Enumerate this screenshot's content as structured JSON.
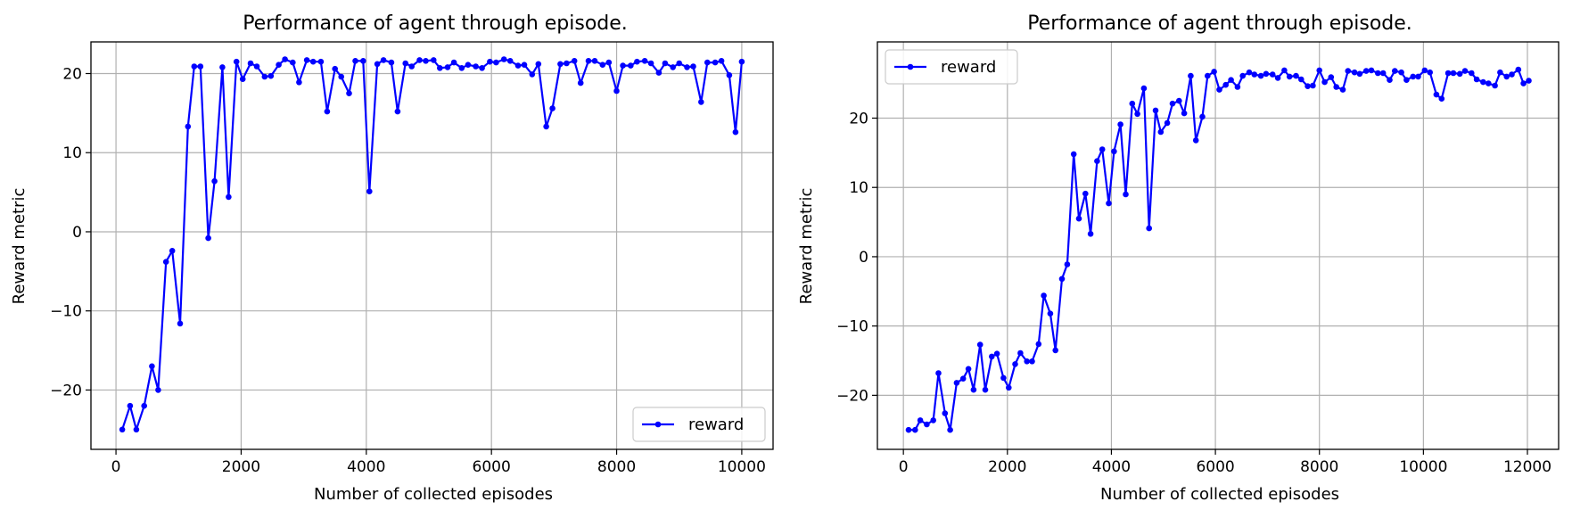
{
  "chart_data": [
    {
      "type": "line",
      "title": "Performance of agent through episode.",
      "xlabel": "Number of collected episodes",
      "ylabel": "Reward metric",
      "xlim": [
        -400,
        10500
      ],
      "ylim": [
        -27.5,
        24.0
      ],
      "xticks": [
        0,
        2000,
        4000,
        6000,
        8000,
        10000
      ],
      "yticks": [
        -20,
        -10,
        0,
        10,
        20
      ],
      "grid": true,
      "legend_position": "lower-right",
      "line_color": "#0000ff",
      "series": [
        {
          "name": "reward",
          "x": [
            100,
            225,
            325,
            450,
            575,
            675,
            800,
            900,
            1025,
            1150,
            1250,
            1350,
            1475,
            1575,
            1700,
            1800,
            1925,
            2025,
            2150,
            2250,
            2375,
            2475,
            2600,
            2700,
            2825,
            2925,
            3050,
            3150,
            3275,
            3375,
            3500,
            3600,
            3725,
            3825,
            3950,
            4050,
            4175,
            4275,
            4400,
            4500,
            4625,
            4725,
            4850,
            4950,
            5075,
            5175,
            5300,
            5400,
            5525,
            5625,
            5750,
            5850,
            5975,
            6075,
            6200,
            6300,
            6425,
            6525,
            6650,
            6750,
            6875,
            6975,
            7100,
            7200,
            7325,
            7425,
            7550,
            7650,
            7775,
            7875,
            8000,
            8100,
            8225,
            8325,
            8450,
            8550,
            8675,
            8775,
            8900,
            9000,
            9125,
            9225,
            9350,
            9450,
            9575,
            9675,
            9800,
            9900,
            10000
          ],
          "y": [
            -25.0,
            -22.0,
            -25.0,
            -22.0,
            -17.0,
            -20.0,
            -3.8,
            -2.4,
            -11.6,
            13.3,
            20.9,
            20.9,
            -0.8,
            6.4,
            20.8,
            4.4,
            21.5,
            19.3,
            21.3,
            20.9,
            19.6,
            19.7,
            21.1,
            21.8,
            21.4,
            18.9,
            21.7,
            21.5,
            21.5,
            15.2,
            20.6,
            19.6,
            17.5,
            21.6,
            21.6,
            5.1,
            21.2,
            21.7,
            21.4,
            15.2,
            21.3,
            20.9,
            21.7,
            21.6,
            21.7,
            20.7,
            20.8,
            21.4,
            20.7,
            21.1,
            20.9,
            20.7,
            21.5,
            21.4,
            21.8,
            21.6,
            21.0,
            21.1,
            19.9,
            21.2,
            13.3,
            15.6,
            21.2,
            21.3,
            21.6,
            18.8,
            21.6,
            21.6,
            21.1,
            21.4,
            17.8,
            21.0,
            21.0,
            21.5,
            21.6,
            21.3,
            20.1,
            21.3,
            20.8,
            21.3,
            20.8,
            20.9,
            16.4,
            21.4,
            21.4,
            21.6,
            19.8,
            12.6,
            21.5
          ]
        }
      ]
    },
    {
      "type": "line",
      "title": "Performance of agent through episode.",
      "xlabel": "Number of collected episodes",
      "ylabel": "Reward metric",
      "xlim": [
        -500,
        12600
      ],
      "ylim": [
        -27.8,
        31.0
      ],
      "xticks": [
        0,
        2000,
        4000,
        6000,
        8000,
        10000,
        12000
      ],
      "yticks": [
        -20,
        -10,
        0,
        10,
        20
      ],
      "grid": true,
      "legend_position": "upper-left",
      "line_color": "#0000ff",
      "series": [
        {
          "name": "reward",
          "x": [
            100,
            225,
            325,
            450,
            575,
            675,
            800,
            900,
            1025,
            1150,
            1250,
            1350,
            1475,
            1575,
            1700,
            1800,
            1925,
            2025,
            2150,
            2250,
            2375,
            2475,
            2600,
            2700,
            2825,
            2925,
            3050,
            3150,
            3275,
            3375,
            3500,
            3600,
            3725,
            3825,
            3950,
            4050,
            4175,
            4275,
            4400,
            4500,
            4625,
            4725,
            4850,
            4950,
            5075,
            5175,
            5300,
            5400,
            5525,
            5625,
            5750,
            5850,
            5975,
            6075,
            6200,
            6300,
            6425,
            6525,
            6650,
            6750,
            6875,
            6975,
            7100,
            7200,
            7325,
            7425,
            7550,
            7650,
            7775,
            7875,
            8000,
            8100,
            8225,
            8325,
            8450,
            8550,
            8675,
            8775,
            8900,
            9000,
            9125,
            9225,
            9350,
            9450,
            9575,
            9675,
            9800,
            9900,
            10025,
            10125,
            10250,
            10350,
            10475,
            10575,
            10700,
            10800,
            10925,
            11025,
            11150,
            11250,
            11375,
            11475,
            11600,
            11700,
            11825,
            11925,
            12025
          ],
          "y": [
            -25.0,
            -25.0,
            -23.6,
            -24.2,
            -23.6,
            -16.8,
            -22.6,
            -25.0,
            -18.2,
            -17.6,
            -16.2,
            -19.2,
            -12.7,
            -19.2,
            -14.4,
            -14.0,
            -17.5,
            -18.9,
            -15.5,
            -13.9,
            -15.1,
            -15.1,
            -12.6,
            -5.6,
            -8.2,
            -13.5,
            -3.2,
            -1.1,
            14.8,
            5.5,
            9.1,
            3.3,
            13.8,
            15.5,
            7.7,
            15.2,
            19.1,
            9.0,
            22.1,
            20.6,
            24.3,
            4.1,
            21.1,
            18.0,
            19.3,
            22.1,
            22.5,
            20.7,
            26.1,
            16.8,
            20.2,
            26.1,
            26.7,
            24.1,
            24.8,
            25.5,
            24.5,
            26.1,
            26.6,
            26.3,
            26.1,
            26.4,
            26.3,
            25.8,
            26.9,
            26.0,
            26.1,
            25.6,
            24.6,
            24.7,
            26.9,
            25.2,
            25.9,
            24.5,
            24.1,
            26.8,
            26.6,
            26.4,
            26.8,
            26.9,
            26.5,
            26.5,
            25.5,
            26.8,
            26.6,
            25.5,
            26.0,
            26.0,
            26.9,
            26.6,
            23.4,
            22.8,
            26.5,
            26.5,
            26.4,
            26.8,
            26.5,
            25.6,
            25.2,
            25.0,
            24.7,
            26.6,
            26.0,
            26.3,
            27.0,
            25.0,
            25.4
          ]
        }
      ]
    }
  ]
}
